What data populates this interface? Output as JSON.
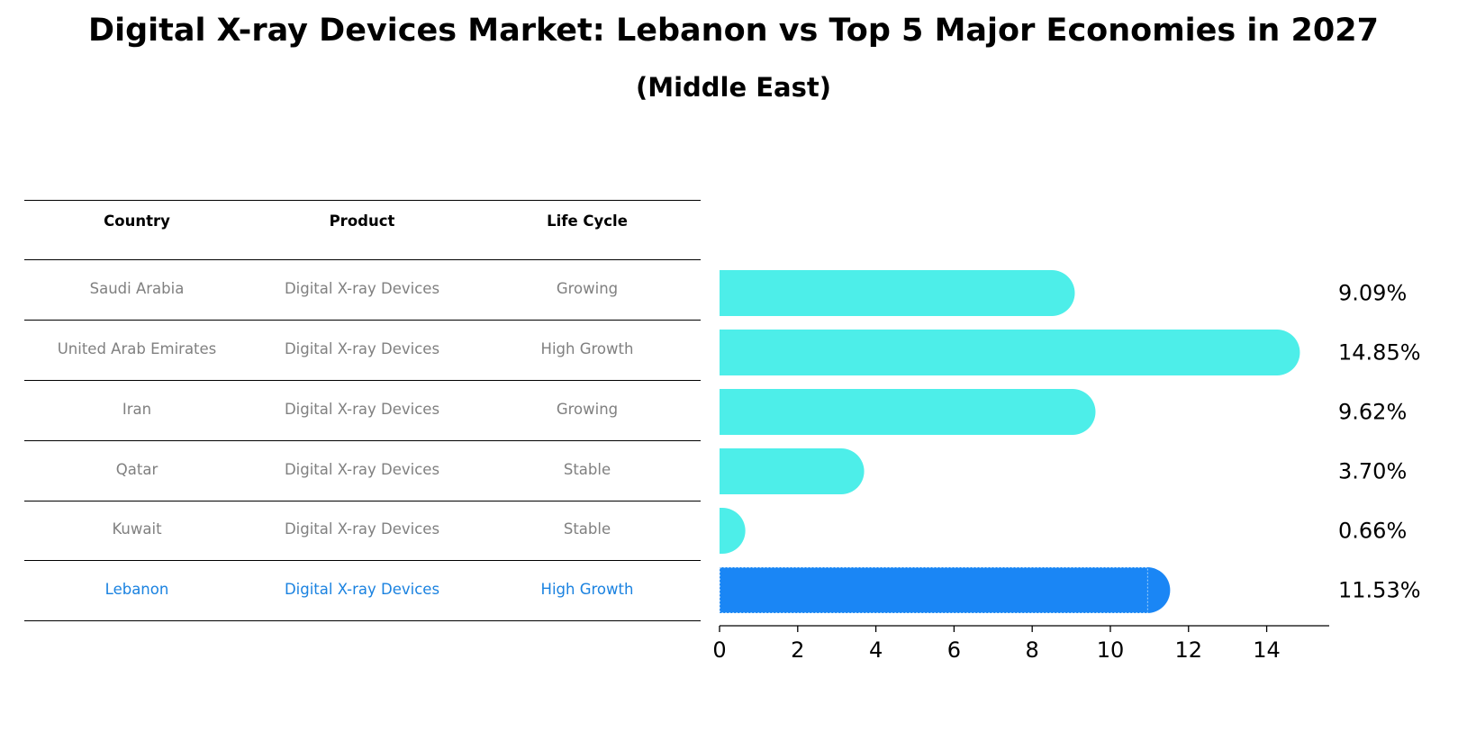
{
  "title": "Digital X-ray Devices Market: Lebanon vs Top 5 Major Economies in 2027",
  "subtitle": "(Middle East)",
  "table": {
    "headers": [
      "Country",
      "Product",
      "Life Cycle"
    ],
    "rows": [
      {
        "country": "Saudi Arabia",
        "product": "Digital X-ray Devices",
        "life_cycle": "Growing"
      },
      {
        "country": "United Arab Emirates",
        "product": "Digital X-ray Devices",
        "life_cycle": "High Growth"
      },
      {
        "country": "Iran",
        "product": "Digital X-ray Devices",
        "life_cycle": "Growing"
      },
      {
        "country": "Qatar",
        "product": "Digital X-ray Devices",
        "life_cycle": "Stable"
      },
      {
        "country": "Kuwait",
        "product": "Digital X-ray Devices",
        "life_cycle": "Stable"
      },
      {
        "country": "Lebanon",
        "product": "Digital X-ray Devices",
        "life_cycle": "High Growth"
      }
    ]
  },
  "chart_data": {
    "type": "bar",
    "orientation": "horizontal",
    "categories": [
      "Saudi Arabia",
      "United Arab Emirates",
      "Iran",
      "Qatar",
      "Kuwait",
      "Lebanon"
    ],
    "values": [
      9.09,
      14.85,
      9.62,
      3.7,
      0.66,
      11.53
    ],
    "value_labels": [
      "9.09%",
      "14.85%",
      "9.62%",
      "3.70%",
      "0.66%",
      "11.53%"
    ],
    "highlight": "Lebanon",
    "xlim": [
      0,
      15.6
    ],
    "xticks": [
      0,
      2,
      4,
      6,
      8,
      10,
      12,
      14
    ],
    "xlabel": "",
    "ylabel": "",
    "grid": false,
    "colors": {
      "default": "#4deee9",
      "highlight": "#1a86f5",
      "highlight_text": "#1a82e0",
      "muted_text": "#808080"
    }
  }
}
